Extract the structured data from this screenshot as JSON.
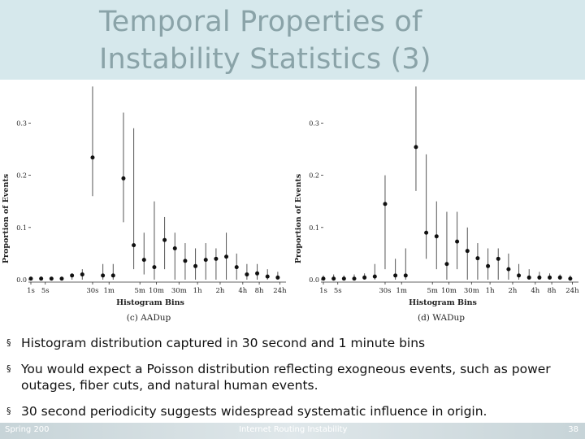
{
  "slide": {
    "title": "Temporal Properties of Instability Statistics (3)",
    "accent_color": "#d6e8ec",
    "title_color": "#8aa3a8"
  },
  "chart_data": [
    {
      "type": "scatter",
      "caption": "(c) AADup",
      "xlabel": "Histogram Bins",
      "ylabel": "Proportion of Events",
      "x_tick_labels": [
        "1s",
        "5s",
        "30s",
        "1m",
        "5m",
        "10m",
        "30m",
        "1h",
        "2h",
        "4h",
        "8h",
        "24h"
      ],
      "y_tick_labels": [
        "0.0",
        "0.1",
        "0.2",
        "0.3"
      ],
      "ylim": [
        0,
        0.38
      ],
      "points": [
        {
          "x": 1,
          "mean": 0.002,
          "lo": 0.0,
          "hi": 0.004
        },
        {
          "x": 2,
          "mean": 0.002,
          "lo": 0.0,
          "hi": 0.006
        },
        {
          "x": 3,
          "mean": 0.002,
          "lo": 0.0,
          "hi": 0.004
        },
        {
          "x": 4,
          "mean": 0.002,
          "lo": 0.0,
          "hi": 0.004
        },
        {
          "x": 5,
          "mean": 0.008,
          "lo": 0.0,
          "hi": 0.012
        },
        {
          "x": 6,
          "mean": 0.01,
          "lo": 0.0,
          "hi": 0.02
        },
        {
          "x": 7,
          "mean": 0.234,
          "lo": 0.16,
          "hi": 0.37
        },
        {
          "x": 8,
          "mean": 0.008,
          "lo": 0.0,
          "hi": 0.03
        },
        {
          "x": 9,
          "mean": 0.008,
          "lo": 0.0,
          "hi": 0.03
        },
        {
          "x": 10,
          "mean": 0.194,
          "lo": 0.11,
          "hi": 0.32
        },
        {
          "x": 11,
          "mean": 0.066,
          "lo": 0.02,
          "hi": 0.29
        },
        {
          "x": 12,
          "mean": 0.038,
          "lo": 0.01,
          "hi": 0.09
        },
        {
          "x": 13,
          "mean": 0.024,
          "lo": 0.0,
          "hi": 0.15
        },
        {
          "x": 14,
          "mean": 0.076,
          "lo": 0.02,
          "hi": 0.12
        },
        {
          "x": 15,
          "mean": 0.06,
          "lo": 0.0,
          "hi": 0.09
        },
        {
          "x": 16,
          "mean": 0.036,
          "lo": 0.0,
          "hi": 0.07
        },
        {
          "x": 17,
          "mean": 0.026,
          "lo": 0.0,
          "hi": 0.06
        },
        {
          "x": 18,
          "mean": 0.038,
          "lo": 0.0,
          "hi": 0.07
        },
        {
          "x": 19,
          "mean": 0.04,
          "lo": 0.0,
          "hi": 0.06
        },
        {
          "x": 20,
          "mean": 0.044,
          "lo": 0.0,
          "hi": 0.09
        },
        {
          "x": 21,
          "mean": 0.024,
          "lo": 0.0,
          "hi": 0.05
        },
        {
          "x": 22,
          "mean": 0.01,
          "lo": 0.0,
          "hi": 0.03
        },
        {
          "x": 23,
          "mean": 0.012,
          "lo": 0.0,
          "hi": 0.03
        },
        {
          "x": 24,
          "mean": 0.006,
          "lo": 0.0,
          "hi": 0.02
        },
        {
          "x": 25,
          "mean": 0.004,
          "lo": 0.0,
          "hi": 0.015
        }
      ]
    },
    {
      "type": "scatter",
      "caption": "(d) WADup",
      "xlabel": "Histogram Bins",
      "ylabel": "Proportion of Events",
      "x_tick_labels": [
        "1s",
        "5s",
        "30s",
        "1m",
        "5m",
        "10m",
        "30m",
        "1h",
        "2h",
        "4h",
        "8h",
        "24h"
      ],
      "y_tick_labels": [
        "0.0",
        "0.1",
        "0.2",
        "0.3"
      ],
      "ylim": [
        0,
        0.38
      ],
      "points": [
        {
          "x": 1,
          "mean": 0.002,
          "lo": 0.0,
          "hi": 0.008
        },
        {
          "x": 2,
          "mean": 0.002,
          "lo": 0.0,
          "hi": 0.01
        },
        {
          "x": 3,
          "mean": 0.002,
          "lo": 0.0,
          "hi": 0.008
        },
        {
          "x": 4,
          "mean": 0.002,
          "lo": 0.0,
          "hi": 0.01
        },
        {
          "x": 5,
          "mean": 0.004,
          "lo": 0.0,
          "hi": 0.012
        },
        {
          "x": 6,
          "mean": 0.006,
          "lo": 0.0,
          "hi": 0.03
        },
        {
          "x": 7,
          "mean": 0.145,
          "lo": 0.02,
          "hi": 0.2
        },
        {
          "x": 8,
          "mean": 0.008,
          "lo": 0.0,
          "hi": 0.04
        },
        {
          "x": 9,
          "mean": 0.008,
          "lo": 0.0,
          "hi": 0.06
        },
        {
          "x": 10,
          "mean": 0.254,
          "lo": 0.17,
          "hi": 0.37
        },
        {
          "x": 11,
          "mean": 0.09,
          "lo": 0.04,
          "hi": 0.24
        },
        {
          "x": 12,
          "mean": 0.083,
          "lo": 0.02,
          "hi": 0.15
        },
        {
          "x": 13,
          "mean": 0.03,
          "lo": 0.0,
          "hi": 0.13
        },
        {
          "x": 14,
          "mean": 0.073,
          "lo": 0.02,
          "hi": 0.13
        },
        {
          "x": 15,
          "mean": 0.055,
          "lo": 0.0,
          "hi": 0.1
        },
        {
          "x": 16,
          "mean": 0.041,
          "lo": 0.0,
          "hi": 0.07
        },
        {
          "x": 17,
          "mean": 0.026,
          "lo": 0.0,
          "hi": 0.06
        },
        {
          "x": 18,
          "mean": 0.04,
          "lo": 0.0,
          "hi": 0.06
        },
        {
          "x": 19,
          "mean": 0.02,
          "lo": 0.0,
          "hi": 0.05
        },
        {
          "x": 20,
          "mean": 0.008,
          "lo": 0.0,
          "hi": 0.03
        },
        {
          "x": 21,
          "mean": 0.004,
          "lo": 0.0,
          "hi": 0.02
        },
        {
          "x": 22,
          "mean": 0.004,
          "lo": 0.0,
          "hi": 0.015
        },
        {
          "x": 23,
          "mean": 0.004,
          "lo": 0.0,
          "hi": 0.012
        },
        {
          "x": 24,
          "mean": 0.004,
          "lo": 0.0,
          "hi": 0.01
        },
        {
          "x": 25,
          "mean": 0.002,
          "lo": 0.0,
          "hi": 0.008
        }
      ]
    }
  ],
  "bullets": [
    "Histogram distribution captured in 30 second and 1 minute bins",
    "You would expect a Poisson distribution reflecting exogneous events, such as power outages, fiber cuts, and natural human events.",
    "30 second periodicity suggests widespread systematic influence in origin."
  ],
  "bullet_mark": "§",
  "footer": {
    "left": "Spring 200",
    "center": "Internet Routing Instability",
    "page": "38"
  }
}
